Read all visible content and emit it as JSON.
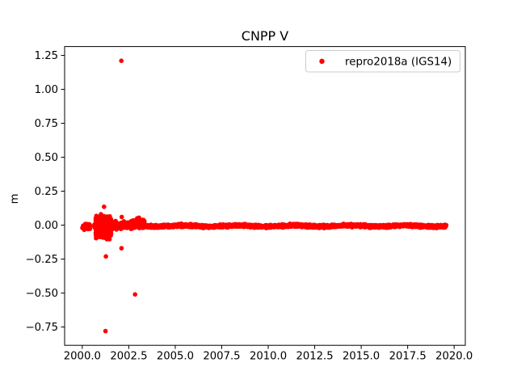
{
  "chart_data": {
    "type": "scatter",
    "title": "CNPP V",
    "xlabel": "",
    "ylabel": "m",
    "grid": false,
    "background_color": "#ffffff",
    "xlim": [
      1999.05,
      2020.6
    ],
    "ylim": [
      -0.885,
      1.315
    ],
    "xtick_values": [
      2000.0,
      2002.5,
      2005.0,
      2007.5,
      2010.0,
      2012.5,
      2015.0,
      2017.5,
      2020.0
    ],
    "xtick_labels": [
      "2000.0",
      "2002.5",
      "2005.0",
      "2007.5",
      "2010.0",
      "2012.5",
      "2015.0",
      "2017.5",
      "2020.0"
    ],
    "ytick_values": [
      1.25,
      1.0,
      0.75,
      0.5,
      0.25,
      0.0,
      -0.25,
      -0.5,
      -0.75
    ],
    "ytick_labels": [
      "1.25",
      "1.00",
      "0.75",
      "0.50",
      "0.25",
      "0.00",
      "−0.25",
      "−0.50",
      "−0.75"
    ],
    "legend": {
      "position": "upper right",
      "entries": [
        {
          "label": "repro2018a (IGS14)",
          "color": "#ff0000",
          "marker": "dot"
        }
      ]
    },
    "series": [
      {
        "name": "repro2018a (IGS14)",
        "color": "#ff0000",
        "marker": "dot",
        "marker_radius_px": 2.8,
        "description": "Daily vertical position residuals (m); dense band near 0 m from 2000.0 to 2019.6 with larger scatter during 2000.7-2001.6 and isolated outliers.",
        "dense_band": [
          {
            "x_start": 2000.0,
            "x_end": 2000.42,
            "n": 55,
            "center": -0.012,
            "sd": 0.009,
            "clip": 0.026,
            "wiggle": 0
          },
          {
            "x_start": 2000.62,
            "x_end": 2000.78,
            "n": 18,
            "center": -0.008,
            "sd": 0.007,
            "clip": 0.016,
            "wiggle": 0
          },
          {
            "x_start": 2000.72,
            "x_end": 2001.55,
            "n": 300,
            "center": -0.012,
            "sd": 0.04,
            "clip": 0.098,
            "wiggle": 0
          },
          {
            "x_start": 2001.55,
            "x_end": 2002.55,
            "n": 170,
            "center": -0.002,
            "sd": 0.013,
            "clip": 0.034,
            "wiggle": 0
          },
          {
            "x_start": 2002.55,
            "x_end": 2003.35,
            "n": 130,
            "center": 0.008,
            "sd": 0.016,
            "clip": 0.05,
            "wiggle": 0
          },
          {
            "x_start": 2003.35,
            "x_end": 2019.58,
            "n": 2150,
            "center": -0.006,
            "sd": 0.005,
            "clip": 0.013,
            "wiggle": 0.004
          }
        ],
        "outliers": [
          [
            2001.17,
            0.135
          ],
          [
            2001.25,
            -0.78
          ],
          [
            2001.27,
            -0.23
          ],
          [
            2002.1,
            1.21
          ],
          [
            2002.11,
            -0.17
          ],
          [
            2002.12,
            0.06
          ],
          [
            2002.84,
            -0.51
          ],
          [
            2002.95,
            0.05
          ],
          [
            2003.05,
            0.055
          ]
        ]
      }
    ]
  }
}
